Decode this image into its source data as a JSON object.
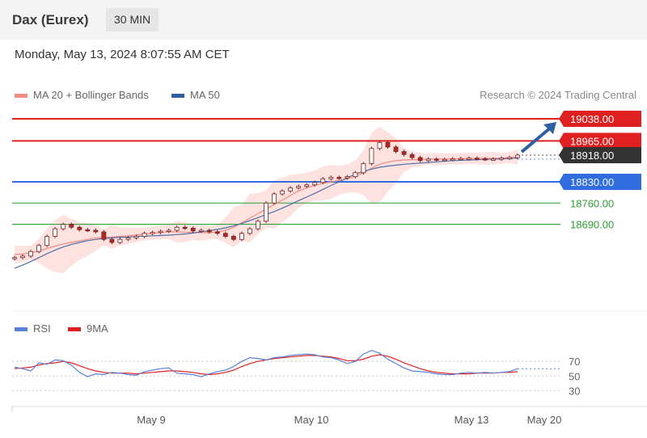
{
  "header": {
    "instrument": "Dax (Eurex)",
    "timeframe": "30 MIN",
    "datetime": "Monday, May 13, 2024 8:07:55 AM CET"
  },
  "legend": {
    "ma20": {
      "label": "MA 20 + Bollinger Bands",
      "color": "#f28b82"
    },
    "ma50": {
      "label": "MA 50",
      "color": "#2f5fa0"
    },
    "credit": "Research © 2024 Trading Central"
  },
  "rsi_legend": {
    "rsi": {
      "label": "RSI",
      "color": "#5a7fd6"
    },
    "ma9": {
      "label": "9MA",
      "color": "#e02020"
    }
  },
  "chart_data": [
    {
      "type": "line",
      "title": "Dax (Eurex) 30 MIN",
      "ylim": [
        18390,
        19078
      ],
      "x_tick_labels": [
        "May 9",
        "May 10",
        "May 13",
        "May 20"
      ],
      "levels": [
        {
          "value": 19038.0,
          "label": "19038.00",
          "kind": "resistance",
          "color": "#e02020"
        },
        {
          "value": 18965.0,
          "label": "18965.00",
          "kind": "resistance",
          "color": "#e02020"
        },
        {
          "value": 18918.0,
          "label": "18918.00",
          "kind": "last-price",
          "color": "#333333"
        },
        {
          "value": 18830.0,
          "label": "18830.00",
          "kind": "pivot",
          "color": "#2f6de0"
        },
        {
          "value": 18760.0,
          "label": "18760.00",
          "kind": "support",
          "color": "#2e9e2e"
        },
        {
          "value": 18690.0,
          "label": "18690.00",
          "kind": "support",
          "color": "#2e9e2e"
        }
      ],
      "series": [
        {
          "name": "Price",
          "values": [
            18580,
            18585,
            18600,
            18620,
            18650,
            18675,
            18690,
            18680,
            18672,
            18670,
            18665,
            18640,
            18630,
            18640,
            18645,
            18650,
            18660,
            18663,
            18667,
            18670,
            18680,
            18677,
            18668,
            18670,
            18665,
            18660,
            18650,
            18640,
            18660,
            18675,
            18700,
            18760,
            18790,
            18800,
            18810,
            18815,
            18820,
            18828,
            18840,
            18845,
            18843,
            18847,
            18860,
            18890,
            18940,
            18960,
            18945,
            18930,
            18920,
            18910,
            18900,
            18905,
            18903,
            18904,
            18906,
            18907,
            18908,
            18906,
            18905,
            18905,
            18908,
            18910,
            18918
          ]
        },
        {
          "name": "MA 20",
          "values": [
            18590,
            18592,
            18596,
            18602,
            18610,
            18618,
            18625,
            18630,
            18635,
            18640,
            18645,
            18647,
            18648,
            18650,
            18652,
            18655,
            18658,
            18660,
            18663,
            18665,
            18665,
            18664,
            18663,
            18662,
            18662,
            18665,
            18670,
            18680,
            18695,
            18710,
            18725,
            18740,
            18755,
            18770,
            18785,
            18800,
            18810,
            18818,
            18825,
            18830,
            18835,
            18840,
            18848,
            18860,
            18875,
            18888,
            18895,
            18900,
            18902,
            18903,
            18904,
            18905,
            18905,
            18905,
            18906,
            18906,
            18907,
            18907,
            18907,
            18908,
            18908,
            18910,
            18912
          ]
        },
        {
          "name": "MA 50",
          "values": [
            18545,
            18555,
            18567,
            18580,
            18593,
            18605,
            18615,
            18623,
            18630,
            18636,
            18640,
            18643,
            18645,
            18647,
            18648,
            18650,
            18651,
            18652,
            18653,
            18654,
            18656,
            18658,
            18661,
            18665,
            18669,
            18673,
            18678,
            18685,
            18693,
            18702,
            18712,
            18722,
            18732,
            18743,
            18755,
            18768,
            18780,
            18792,
            18805,
            18818,
            18830,
            18843,
            18855,
            18865,
            18872,
            18878,
            18882,
            18885,
            18888,
            18890,
            18892,
            18894,
            18896,
            18898,
            18900,
            18901,
            18902,
            18903,
            18904,
            18905,
            18906,
            18907,
            18908
          ]
        }
      ],
      "forecast": {
        "from": 18918,
        "to": 19038
      }
    },
    {
      "type": "line",
      "title": "RSI",
      "ylim": [
        15,
        100
      ],
      "y_ticks": [
        30,
        50,
        70
      ],
      "series": [
        {
          "name": "RSI",
          "values": [
            62,
            60,
            57,
            68,
            66,
            72,
            71,
            65,
            55,
            49,
            53,
            52,
            55,
            54,
            52,
            51,
            56,
            58,
            60,
            61,
            54,
            53,
            52,
            49,
            53,
            56,
            58,
            63,
            70,
            75,
            74,
            72,
            75,
            76,
            78,
            79,
            80,
            79,
            76,
            75,
            72,
            67,
            70,
            80,
            85,
            81,
            73,
            67,
            61,
            57,
            56,
            55,
            53,
            52,
            52,
            54,
            55,
            54,
            55,
            54,
            55,
            56,
            60
          ]
        },
        {
          "name": "9MA",
          "values": [
            60,
            61,
            62,
            65,
            67,
            68,
            70,
            68,
            64,
            60,
            57,
            55,
            54,
            54,
            54,
            53,
            54,
            55,
            56,
            57,
            57,
            56,
            55,
            53,
            52,
            53,
            55,
            58,
            63,
            67,
            70,
            72,
            74,
            75,
            76,
            77,
            78,
            78,
            77,
            76,
            74,
            71,
            71,
            73,
            77,
            79,
            77,
            73,
            68,
            64,
            60,
            57,
            55,
            54,
            53,
            53,
            53,
            54,
            54,
            54,
            55,
            55,
            56
          ]
        }
      ]
    }
  ]
}
